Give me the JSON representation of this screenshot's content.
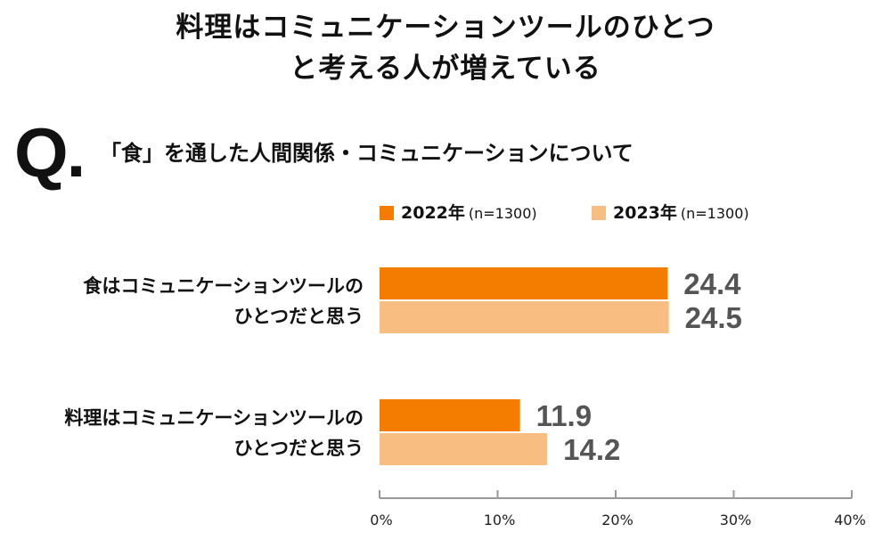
{
  "title_lines": [
    "料理はコミュニケーションツールのひとつ",
    "と考える人が増えている"
  ],
  "question": {
    "mark": "Q.",
    "text": "「食」を通した人間関係・コミュニケーションについて"
  },
  "colors": {
    "series_2022": "#f47d00",
    "series_2023": "#f8bd80",
    "value_text": "#555555",
    "axis": "#999999"
  },
  "chart_data": {
    "type": "bar",
    "orientation": "horizontal",
    "categories": [
      [
        "食はコミュニケーションツールの",
        "ひとつだと思う"
      ],
      [
        "料理はコミュニケーションツールの",
        "ひとつだと思う"
      ]
    ],
    "series": [
      {
        "name": "2022年",
        "n": "(n=1300)",
        "values": [
          24.4,
          11.9
        ]
      },
      {
        "name": "2023年",
        "n": "(n=1300)",
        "values": [
          24.5,
          14.2
        ]
      }
    ],
    "value_labels": [
      [
        "24.4",
        "11.9"
      ],
      [
        "24.5",
        "14.2"
      ]
    ],
    "xlim": [
      0,
      40
    ],
    "xticks": [
      "0%",
      "10%",
      "20%",
      "30%",
      "40%"
    ],
    "legend_position": "top"
  }
}
